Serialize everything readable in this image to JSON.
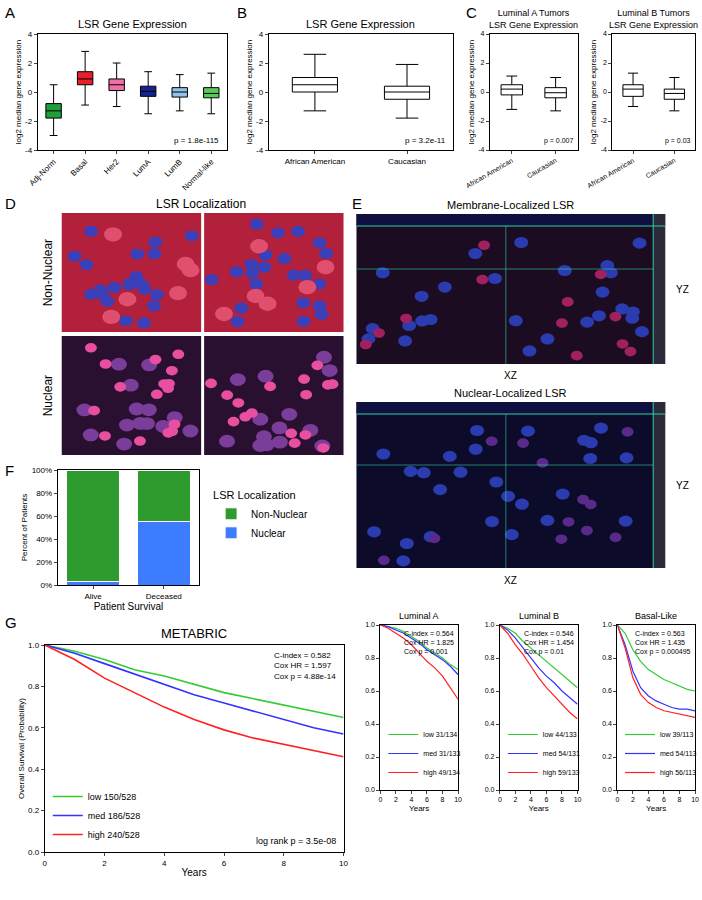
{
  "chart_data": [
    {
      "type": "box",
      "panel": "A",
      "title": "LSR Gene Expression",
      "ylabel": "log2 median gene expression",
      "categories": [
        "Adj-Norm",
        "Basal",
        "Her2",
        "LumA",
        "LumB",
        "Normal-like"
      ],
      "boxes": [
        {
          "lowerfence": -3.0,
          "q1": -1.8,
          "median": -1.3,
          "q3": -0.8,
          "upperfence": 0.5
        },
        {
          "lowerfence": -0.9,
          "q1": 0.5,
          "median": 0.9,
          "q3": 1.4,
          "upperfence": 2.8
        },
        {
          "lowerfence": -1.0,
          "q1": 0.1,
          "median": 0.5,
          "q3": 0.9,
          "upperfence": 2.0
        },
        {
          "lowerfence": -1.5,
          "q1": -0.3,
          "median": 0.05,
          "q3": 0.4,
          "upperfence": 1.4
        },
        {
          "lowerfence": -1.3,
          "q1": -0.35,
          "median": 0.0,
          "q3": 0.3,
          "upperfence": 1.2
        },
        {
          "lowerfence": -1.5,
          "q1": -0.4,
          "median": -0.1,
          "q3": 0.3,
          "upperfence": 1.3
        }
      ],
      "colors": [
        "#1f9e3a",
        "#e8202a",
        "#f06fa8",
        "#14248f",
        "#8ec5e8",
        "#59c95a"
      ],
      "ylim": [
        -4,
        4
      ],
      "yticks": [
        -4,
        -2,
        0,
        2,
        4
      ],
      "grid": false,
      "annotations": [
        "p = 1.8e-115"
      ]
    },
    {
      "type": "box",
      "panel": "B",
      "title": "LSR Gene Expression",
      "ylabel": "log2 median gene expression",
      "categories": [
        "African American",
        "Caucasian"
      ],
      "boxes": [
        {
          "lowerfence": -1.3,
          "q1": 0.0,
          "median": 0.5,
          "q3": 1.0,
          "upperfence": 2.6
        },
        {
          "lowerfence": -1.8,
          "q1": -0.5,
          "median": 0.0,
          "q3": 0.4,
          "upperfence": 1.9
        }
      ],
      "colors": [
        "#ffffff",
        "#ffffff"
      ],
      "ylim": [
        -4,
        4
      ],
      "yticks": [
        -4,
        -2,
        0,
        2,
        4
      ],
      "grid": false,
      "annotations": [
        "p = 3.2e-11"
      ]
    },
    {
      "type": "box",
      "panel": "C",
      "title": [
        "Luminal A Tumors",
        "LSR Gene Expression"
      ],
      "ylabel": "log2 median gene expression",
      "categories": [
        "African American",
        "Caucasian"
      ],
      "boxes": [
        {
          "lowerfence": -1.2,
          "q1": -0.2,
          "median": 0.2,
          "q3": 0.5,
          "upperfence": 1.1
        },
        {
          "lowerfence": -1.3,
          "q1": -0.4,
          "median": -0.05,
          "q3": 0.3,
          "upperfence": 1.0
        }
      ],
      "colors": [
        "#ffffff",
        "#ffffff"
      ],
      "ylim": [
        -4,
        4
      ],
      "yticks": [
        -4,
        -2,
        0,
        2,
        4
      ],
      "grid": false,
      "annotations": [
        "p = 0.007"
      ]
    },
    {
      "type": "box",
      "title": [
        "Luminal B Tumors",
        "LSR Gene Expression"
      ],
      "ylabel": "log2 median gene expression",
      "categories": [
        "African American",
        "Caucasian"
      ],
      "boxes": [
        {
          "lowerfence": -1.0,
          "q1": -0.3,
          "median": 0.2,
          "q3": 0.5,
          "upperfence": 1.3
        },
        {
          "lowerfence": -1.3,
          "q1": -0.5,
          "median": -0.1,
          "q3": 0.2,
          "upperfence": 1.0
        }
      ],
      "colors": [
        "#ffffff",
        "#ffffff"
      ],
      "ylim": [
        -4,
        4
      ],
      "yticks": [
        -4,
        -2,
        0,
        2,
        4
      ],
      "grid": false,
      "annotations": [
        "p = 0.03"
      ]
    },
    {
      "type": "bar",
      "panel": "F",
      "stacked": true,
      "xlabel": "Patient Survival",
      "ylabel": "Percent of Patients",
      "categories": [
        "Alive",
        "Deceased"
      ],
      "series": [
        {
          "name": "Nuclear",
          "color": "#3d7bff",
          "values": [
            3,
            55
          ]
        },
        {
          "name": "Non-Nuclear",
          "color": "#2e9b2e",
          "values": [
            97,
            45
          ]
        }
      ],
      "ylim": [
        0,
        100
      ],
      "yticks": [
        {
          "value": 0,
          "label": "0%"
        },
        {
          "value": 20,
          "label": "20%"
        },
        {
          "value": 40,
          "label": "40%"
        },
        {
          "value": 60,
          "label": "60%"
        },
        {
          "value": 80,
          "label": "80%"
        },
        {
          "value": 100,
          "label": "100%"
        }
      ],
      "grid": false,
      "legend": "right",
      "legend_title": "LSR Localization"
    },
    {
      "type": "line",
      "panel": "G",
      "title": "METABRIC",
      "xlabel": "Years",
      "ylabel": "Overall Survival (Probability)",
      "x": [
        0,
        1,
        2,
        3,
        4,
        5,
        6,
        7,
        8,
        9,
        10
      ],
      "series": [
        {
          "name": "low 150/528",
          "color": "#33cc33",
          "values": [
            1.0,
            0.97,
            0.93,
            0.88,
            0.85,
            0.81,
            0.77,
            0.74,
            0.71,
            0.68,
            0.65
          ]
        },
        {
          "name": "med 186/528",
          "color": "#3333ff",
          "values": [
            1.0,
            0.96,
            0.91,
            0.86,
            0.81,
            0.76,
            0.72,
            0.68,
            0.64,
            0.6,
            0.57
          ]
        },
        {
          "name": "high 240/528",
          "color": "#ff2222",
          "values": [
            1.0,
            0.93,
            0.84,
            0.77,
            0.7,
            0.64,
            0.59,
            0.55,
            0.52,
            0.49,
            0.46
          ]
        }
      ],
      "xlim": [
        0,
        10
      ],
      "xticks": [
        0,
        2,
        4,
        6,
        8,
        10
      ],
      "ylim": [
        0,
        1
      ],
      "yticks": [
        {
          "value": 0,
          "label": "0.0"
        },
        0.2,
        0.4,
        0.6,
        0.8,
        {
          "value": 1,
          "label": "1.0"
        }
      ],
      "grid": false,
      "legend": "lower left",
      "line_style": "solid",
      "annotations": [
        "C-index = 0.582",
        "Cox HR = 1.597",
        "Cox p = 4.88e-14"
      ],
      "note": "log rank p = 3.5e-08"
    },
    {
      "type": "line",
      "title": "Luminal A",
      "xlabel": "Years",
      "x": [
        0,
        1,
        2,
        3,
        4,
        5,
        6,
        7,
        8,
        9,
        10
      ],
      "series": [
        {
          "name": "low 31/134",
          "color": "#33cc33",
          "values": [
            1.0,
            0.99,
            0.98,
            0.96,
            0.93,
            0.9,
            0.86,
            0.83,
            0.8,
            0.76,
            0.73
          ]
        },
        {
          "name": "med 31/133",
          "color": "#3333ff",
          "values": [
            1.0,
            0.99,
            0.97,
            0.95,
            0.92,
            0.89,
            0.85,
            0.82,
            0.79,
            0.75,
            0.7
          ]
        },
        {
          "name": "high 49/134",
          "color": "#ff2222",
          "values": [
            1.0,
            0.98,
            0.95,
            0.92,
            0.88,
            0.83,
            0.78,
            0.74,
            0.69,
            0.62,
            0.55
          ]
        }
      ],
      "xlim": [
        0,
        10
      ],
      "xticks": [
        0,
        2,
        4,
        6,
        8,
        10
      ],
      "ylim": [
        0,
        1
      ],
      "yticks": [
        {
          "value": 0,
          "label": "0.0"
        },
        0.2,
        0.4,
        0.6,
        0.8,
        {
          "value": 1,
          "label": "1.0"
        }
      ],
      "grid": false,
      "legend": "lower left",
      "line_style": "solid",
      "annotations": [
        "C-index = 0.564",
        "Cox HR = 1.825",
        "Cox p = 0.001"
      ]
    },
    {
      "type": "line",
      "title": "Luminal B",
      "xlabel": "Years",
      "x": [
        0,
        1,
        2,
        3,
        4,
        5,
        6,
        7,
        8,
        9,
        10
      ],
      "series": [
        {
          "name": "low 44/133",
          "color": "#33cc33",
          "values": [
            1.0,
            0.98,
            0.95,
            0.9,
            0.86,
            0.82,
            0.78,
            0.74,
            0.7,
            0.66,
            0.62
          ]
        },
        {
          "name": "med 54/131",
          "color": "#3333ff",
          "values": [
            1.0,
            0.97,
            0.92,
            0.86,
            0.8,
            0.74,
            0.69,
            0.65,
            0.6,
            0.56,
            0.52
          ]
        },
        {
          "name": "high 59/133",
          "color": "#ff2222",
          "values": [
            1.0,
            0.95,
            0.88,
            0.82,
            0.75,
            0.68,
            0.62,
            0.57,
            0.52,
            0.47,
            0.43
          ]
        }
      ],
      "xlim": [
        0,
        10
      ],
      "xticks": [
        0,
        2,
        4,
        6,
        8,
        10
      ],
      "ylim": [
        0,
        1
      ],
      "yticks": [
        {
          "value": 0,
          "label": "0.0"
        },
        0.2,
        0.4,
        0.6,
        0.8,
        {
          "value": 1,
          "label": "1.0"
        }
      ],
      "grid": false,
      "legend": "lower left",
      "line_style": "solid",
      "annotations": [
        "C-index = 0.546",
        "Cox HR = 1.454",
        "Cox p = 0.01"
      ]
    },
    {
      "type": "line",
      "title": "Basal-Like",
      "xlabel": "Years",
      "x": [
        0,
        1,
        2,
        3,
        4,
        5,
        6,
        7,
        8,
        9,
        10
      ],
      "series": [
        {
          "name": "low 39/113",
          "color": "#33cc33",
          "values": [
            1.0,
            0.95,
            0.85,
            0.78,
            0.73,
            0.7,
            0.67,
            0.65,
            0.63,
            0.61,
            0.6
          ]
        },
        {
          "name": "med 54/113",
          "color": "#3333ff",
          "values": [
            1.0,
            0.88,
            0.72,
            0.62,
            0.57,
            0.54,
            0.52,
            0.5,
            0.49,
            0.49,
            0.48
          ]
        },
        {
          "name": "high 56/113",
          "color": "#ff2222",
          "values": [
            1.0,
            0.86,
            0.68,
            0.58,
            0.53,
            0.5,
            0.48,
            0.47,
            0.46,
            0.45,
            0.44
          ]
        }
      ],
      "xlim": [
        0,
        10
      ],
      "xticks": [
        0,
        2,
        4,
        6,
        8,
        10
      ],
      "ylim": [
        0,
        1
      ],
      "yticks": [
        {
          "value": 0,
          "label": "0.0"
        },
        0.2,
        0.4,
        0.6,
        0.8,
        {
          "value": 1,
          "label": "1.0"
        }
      ],
      "grid": false,
      "legend": "lower left",
      "line_style": "solid",
      "annotations": [
        "C-index = 0.563",
        "Cox HR = 1.435",
        "Cox p = 0.000495"
      ]
    }
  ],
  "image_panels": [
    {
      "panel": "D",
      "title": "LSR Localization",
      "row_labels": [
        "Non-Nuclear",
        "Nuclear"
      ]
    },
    {
      "panel": "E",
      "views": [
        {
          "title": "Membrane-Localized LSR",
          "x_label": "XZ",
          "y_label": "YZ"
        },
        {
          "title": "Nuclear-Localized LSR",
          "x_label": "XZ",
          "y_label": "YZ"
        }
      ]
    }
  ]
}
